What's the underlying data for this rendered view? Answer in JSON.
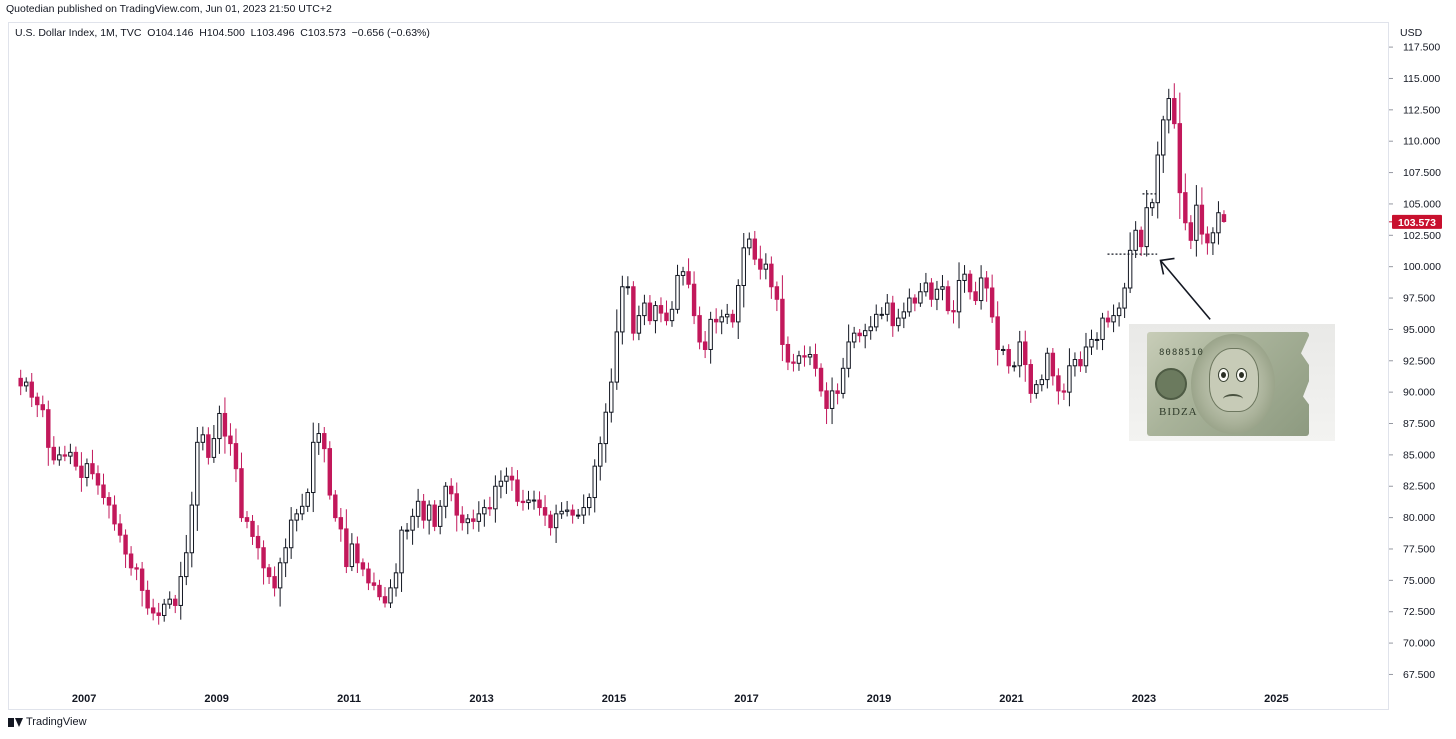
{
  "header": {
    "published": "Quotedian published on TradingView.com, Jun 01, 2023 21:50 UTC+2"
  },
  "symbol": {
    "name": "U.S. Dollar Index, 1M, TVC",
    "open": "O104.146",
    "high": "H104.500",
    "low": "L103.496",
    "close": "C103.573",
    "change": "−0.656 (−0.63%)"
  },
  "currency": "USD",
  "footer": {
    "brand": "TradingView"
  },
  "last_price": "103.573",
  "colors": {
    "up": "#131722",
    "down": "#c2185b",
    "up_fill": "#ffffff",
    "price_label": "#c8102e",
    "grid": "#e0e3eb"
  },
  "image": {
    "icon": "sad-dollar-bill",
    "serial_top": "8088510",
    "serial_bottom": "BIDZA"
  },
  "chart_data": {
    "type": "candlestick",
    "title": "",
    "xlabel": "",
    "ylabel": "",
    "ylim": [
      66.5,
      119.5
    ],
    "y_ticks": [
      67.5,
      70.0,
      72.5,
      75.0,
      77.5,
      80.0,
      82.5,
      85.0,
      87.5,
      90.0,
      92.5,
      95.0,
      97.5,
      100.0,
      102.5,
      105.0,
      107.5,
      110.0,
      112.5,
      115.0,
      117.5
    ],
    "y_tick_labels": [
      "67.500",
      "70.000",
      "72.500",
      "75.000",
      "77.500",
      "80.000",
      "82.500",
      "85.000",
      "87.500",
      "90.000",
      "92.500",
      "95.000",
      "97.500",
      "100.000",
      "102.500",
      "105.000",
      "107.500",
      "110.000",
      "112.500",
      "115.000",
      "117.500"
    ],
    "x_ticks": [
      "2007",
      "2009",
      "2011",
      "2013",
      "2015",
      "2017",
      "2019",
      "2021",
      "2023",
      "2025"
    ],
    "x_tick_values": [
      2007,
      2009,
      2011,
      2013,
      2015,
      2017,
      2019,
      2021,
      2023,
      2025
    ],
    "x_range": [
      2005.85,
      2026.7
    ],
    "start": 2006.0,
    "closes": [
      90.5,
      90.8,
      89.6,
      89.0,
      88.6,
      85.6,
      84.6,
      85.0,
      84.9,
      85.2,
      84.1,
      83.2,
      84.3,
      83.5,
      82.6,
      81.6,
      81.0,
      79.5,
      78.6,
      77.1,
      76.0,
      75.9,
      74.2,
      72.8,
      72.4,
      72.2,
      73.1,
      73.5,
      73.0,
      75.3,
      77.2,
      81.0,
      86.0,
      86.6,
      84.8,
      86.3,
      88.3,
      86.5,
      85.9,
      83.9,
      80.0,
      79.7,
      78.5,
      77.6,
      76.0,
      75.3,
      74.4,
      76.4,
      77.6,
      79.8,
      80.3,
      80.9,
      82.0,
      86.0,
      86.7,
      85.5,
      81.8,
      80.0,
      79.1,
      76.1,
      77.9,
      76.4,
      75.9,
      74.8,
      74.6,
      73.7,
      73.2,
      74.4,
      75.6,
      79.0,
      79.0,
      80.1,
      81.3,
      79.8,
      81.0,
      79.3,
      80.9,
      82.5,
      81.9,
      80.2,
      79.6,
      79.9,
      79.7,
      80.3,
      80.8,
      80.7,
      82.5,
      82.9,
      83.3,
      83.0,
      81.3,
      81.2,
      81.4,
      81.4,
      80.8,
      80.2,
      79.2,
      80.3,
      80.5,
      80.6,
      80.2,
      80.2,
      80.8,
      81.6,
      84.1,
      85.9,
      88.4,
      90.8,
      94.8,
      98.4,
      98.4,
      94.7,
      96.1,
      97.1,
      95.7,
      96.9,
      96.3,
      95.7,
      96.6,
      99.3,
      99.6,
      98.6,
      96.1,
      94.0,
      93.4,
      95.8,
      95.6,
      96.0,
      96.2,
      95.6,
      98.5,
      101.5,
      102.2,
      100.6,
      99.8,
      100.2,
      98.4,
      97.4,
      93.8,
      92.4,
      92.3,
      92.9,
      92.8,
      93.0,
      91.9,
      90.1,
      88.7,
      90.1,
      89.9,
      91.9,
      94.0,
      94.7,
      94.5,
      94.9,
      95.2,
      96.2,
      96.2,
      97.1,
      95.3,
      95.9,
      96.4,
      97.5,
      97.1,
      98.0,
      98.7,
      97.4,
      98.2,
      98.4,
      96.5,
      96.4,
      98.9,
      99.4,
      98.0,
      97.3,
      99.1,
      98.3,
      96.0,
      93.4,
      93.4,
      92.1,
      92.1,
      94.0,
      92.2,
      89.9,
      90.6,
      91.0,
      93.1,
      91.3,
      90.1,
      90.0,
      92.1,
      92.6,
      92.1,
      93.6,
      94.2,
      94.2,
      95.9,
      95.6,
      96.1,
      96.7,
      98.3,
      101.3,
      102.9,
      101.6,
      104.7,
      105.1,
      108.9,
      111.7,
      113.4,
      111.4,
      105.9,
      103.5,
      102.1,
      104.9,
      102.6,
      101.9,
      102.7,
      104.3,
      103.6
    ],
    "last_high": 104.5,
    "last_low": 103.5,
    "annotations": {
      "range_top": 105.8,
      "range_bottom": 101.0,
      "range_start": 2022.45,
      "range_end": 2023.2
    }
  }
}
